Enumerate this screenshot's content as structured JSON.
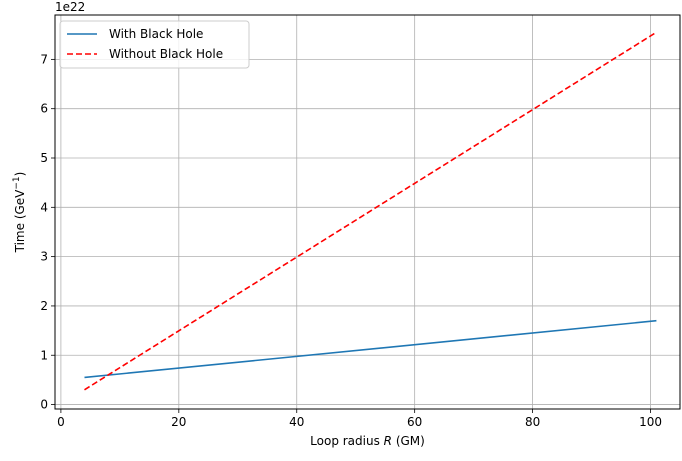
{
  "chart_data": {
    "type": "line",
    "xlabel_prefix": "Loop radius ",
    "xlabel_var": "R",
    "xlabel_suffix": " (GM)",
    "ylabel_text": "Time (GeV",
    "ylabel_exp": "−1",
    "ylabel_close": ")",
    "offset_text": "1e22",
    "xlim": [
      -1,
      105
    ],
    "ylim": [
      -0.09,
      7.9
    ],
    "xticks": [
      0,
      20,
      40,
      60,
      80,
      100
    ],
    "yticks": [
      0,
      1,
      2,
      3,
      4,
      5,
      6,
      7
    ],
    "grid": true,
    "legend_position": "top-left",
    "series": [
      {
        "name": "With Black Hole",
        "color": "#1f77b4",
        "style": "solid",
        "x": [
          4,
          101
        ],
        "y": [
          0.55,
          1.7
        ]
      },
      {
        "name": "Without Black Hole",
        "color": "#ff0000",
        "style": "dashed",
        "x": [
          4,
          101
        ],
        "y": [
          0.3,
          7.55
        ]
      }
    ]
  }
}
